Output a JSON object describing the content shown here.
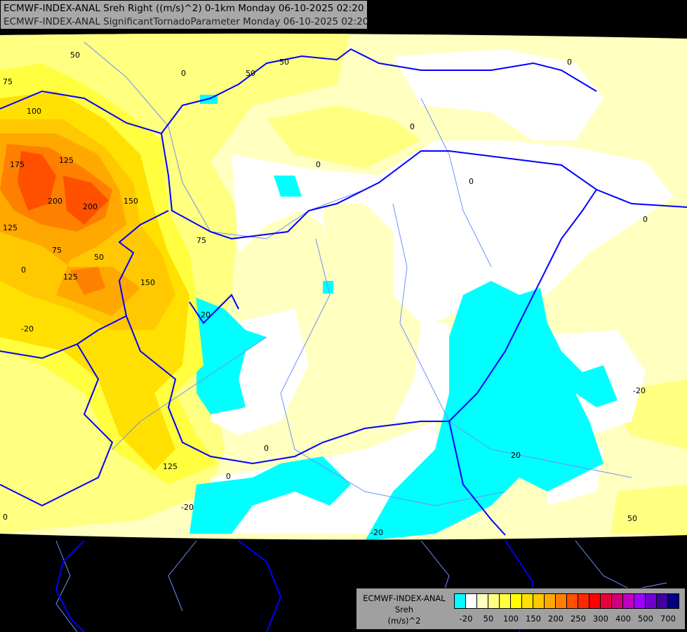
{
  "header": {
    "line1": "ECMWF-INDEX-ANAL Sreh Right ((m/s)^2) 0-1km Monday 06-10-2025 02:20",
    "line2": "ECMWF-INDEX-ANAL SignificantTornadoParameter Monday 06-10-2025 02:20"
  },
  "legend": {
    "model": "ECMWF-INDEX-ANAL",
    "variable": "Sreh",
    "unit": "(m/s)^2",
    "colors": [
      "#00ffff",
      "#ffffff",
      "#ffffc0",
      "#ffff80",
      "#ffff40",
      "#ffff00",
      "#ffe000",
      "#ffc800",
      "#ffa800",
      "#ff8000",
      "#ff5000",
      "#ff2800",
      "#ff0000",
      "#e8003c",
      "#d0007c",
      "#c000c0",
      "#a000ff",
      "#7000d0",
      "#4000a0",
      "#000080"
    ],
    "ticks": [
      "-20",
      "50",
      "100",
      "150",
      "200",
      "250",
      "300",
      "400",
      "500",
      "700"
    ]
  },
  "map": {
    "colors": {
      "background": "#000000",
      "border": "#0000ff",
      "river": "#7090ff"
    },
    "contour_labels": [
      "50",
      "50",
      "50",
      "0",
      "75",
      "100",
      "125",
      "175",
      "200",
      "200",
      "150",
      "125",
      "75",
      "50",
      "0",
      "125",
      "150",
      "0",
      "75",
      "0",
      "0",
      "-20",
      "0",
      "0",
      "125",
      "-20",
      "20",
      "0",
      "-20",
      "-20",
      "-20",
      "0",
      "50",
      "0"
    ]
  }
}
